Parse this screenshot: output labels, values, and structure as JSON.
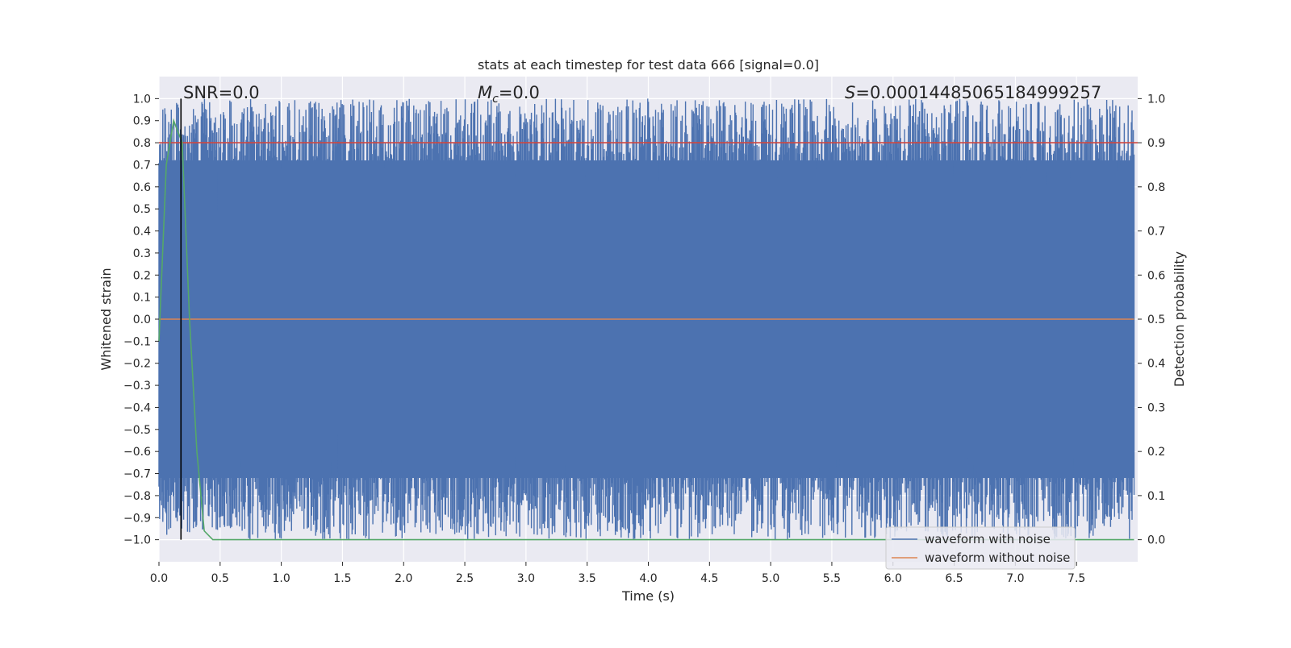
{
  "chart_data": {
    "type": "line",
    "title": "stats at each timestep for test data 666 [signal=0.0]",
    "xlabel": "Time (s)",
    "ylabel": "Whitened strain",
    "ylabel_right": "Detection probability",
    "xlim": [
      0.0,
      8.0
    ],
    "ylim": [
      -1.1,
      1.1
    ],
    "ylim_right": [
      -0.05,
      1.05
    ],
    "x_ticks": [
      "0.0",
      "0.5",
      "1.0",
      "1.5",
      "2.0",
      "2.5",
      "3.0",
      "3.5",
      "4.0",
      "4.5",
      "5.0",
      "5.5",
      "6.0",
      "6.5",
      "7.0",
      "7.5"
    ],
    "y_ticks": [
      "1.0",
      "0.9",
      "0.8",
      "0.7",
      "0.6",
      "0.5",
      "0.4",
      "0.3",
      "0.2",
      "0.1",
      "0.0",
      "−0.1",
      "−0.2",
      "−0.3",
      "−0.4",
      "−0.5",
      "−0.6",
      "−0.7",
      "−0.8",
      "−0.9",
      "−1.0"
    ],
    "y_right_ticks": [
      "1.0",
      "0.9",
      "0.8",
      "0.7",
      "0.6",
      "0.5",
      "0.4",
      "0.3",
      "0.2",
      "0.1",
      "0.0"
    ],
    "grid": true,
    "legend_position": "lower-right",
    "annotations": {
      "snr": "SNR=0.0",
      "mc_symbol": "M",
      "mc_sub": "c",
      "mc_value": "=0.0",
      "s_symbol": "S",
      "s_value": "=0.00014485065184999257"
    },
    "series": [
      {
        "name": "waveform with noise",
        "color": "#4c72b0",
        "description": "dense noise filling approximately -1.0 to 1.0 over the full 0–8 s range"
      },
      {
        "name": "waveform without noise",
        "color": "#dd8452",
        "x": [
          0.0,
          8.0
        ],
        "y": [
          0.0,
          0.0
        ]
      },
      {
        "color": "#d0463f",
        "axis": "right",
        "x": [
          0.0,
          8.0
        ],
        "y": [
          0.9,
          0.9
        ]
      },
      {
        "color": "#55a868",
        "axis": "right",
        "x": [
          0.0,
          0.06,
          0.12,
          0.19,
          0.25,
          0.31,
          0.37,
          0.44,
          8.0
        ],
        "y": [
          0.45,
          0.85,
          0.95,
          0.9,
          0.5,
          0.2,
          0.02,
          0.0,
          0.0
        ]
      }
    ],
    "vline_x": 0.18,
    "colors": {
      "axes_bg": "#eaeaf2",
      "grid": "#ffffff",
      "vline": "#000000"
    }
  }
}
